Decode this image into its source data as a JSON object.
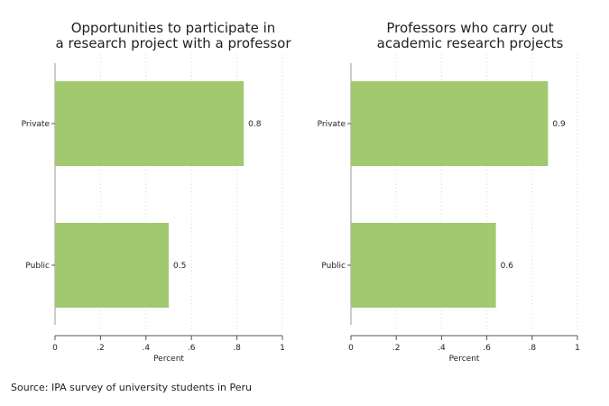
{
  "chart_data": [
    {
      "type": "bar",
      "orientation": "horizontal",
      "title_lines": [
        "Opportunities to participate in",
        "a research project with a professor"
      ],
      "categories": [
        "Private",
        "Public"
      ],
      "values": [
        0.83,
        0.5
      ],
      "data_labels": [
        "0.8",
        "0.5"
      ],
      "xlabel": "Percent",
      "xlim": [
        0,
        1
      ],
      "xticks": [
        "0",
        ".2",
        ".4",
        ".6",
        ".8",
        "1"
      ],
      "grid": "vertical dotted",
      "bar_color": "#a2c96e"
    },
    {
      "type": "bar",
      "orientation": "horizontal",
      "title_lines": [
        "Professors who carry out",
        "academic research projects"
      ],
      "categories": [
        "Private",
        "Public"
      ],
      "values": [
        0.87,
        0.64
      ],
      "data_labels": [
        "0.9",
        "0.6"
      ],
      "xlabel": "Percent",
      "xlim": [
        0,
        1
      ],
      "xticks": [
        "0",
        ".2",
        ".4",
        ".6",
        ".8",
        "1"
      ],
      "grid": "vertical dotted",
      "bar_color": "#a2c96e"
    }
  ],
  "source_note": "Source: IPA survey of university students in Peru"
}
